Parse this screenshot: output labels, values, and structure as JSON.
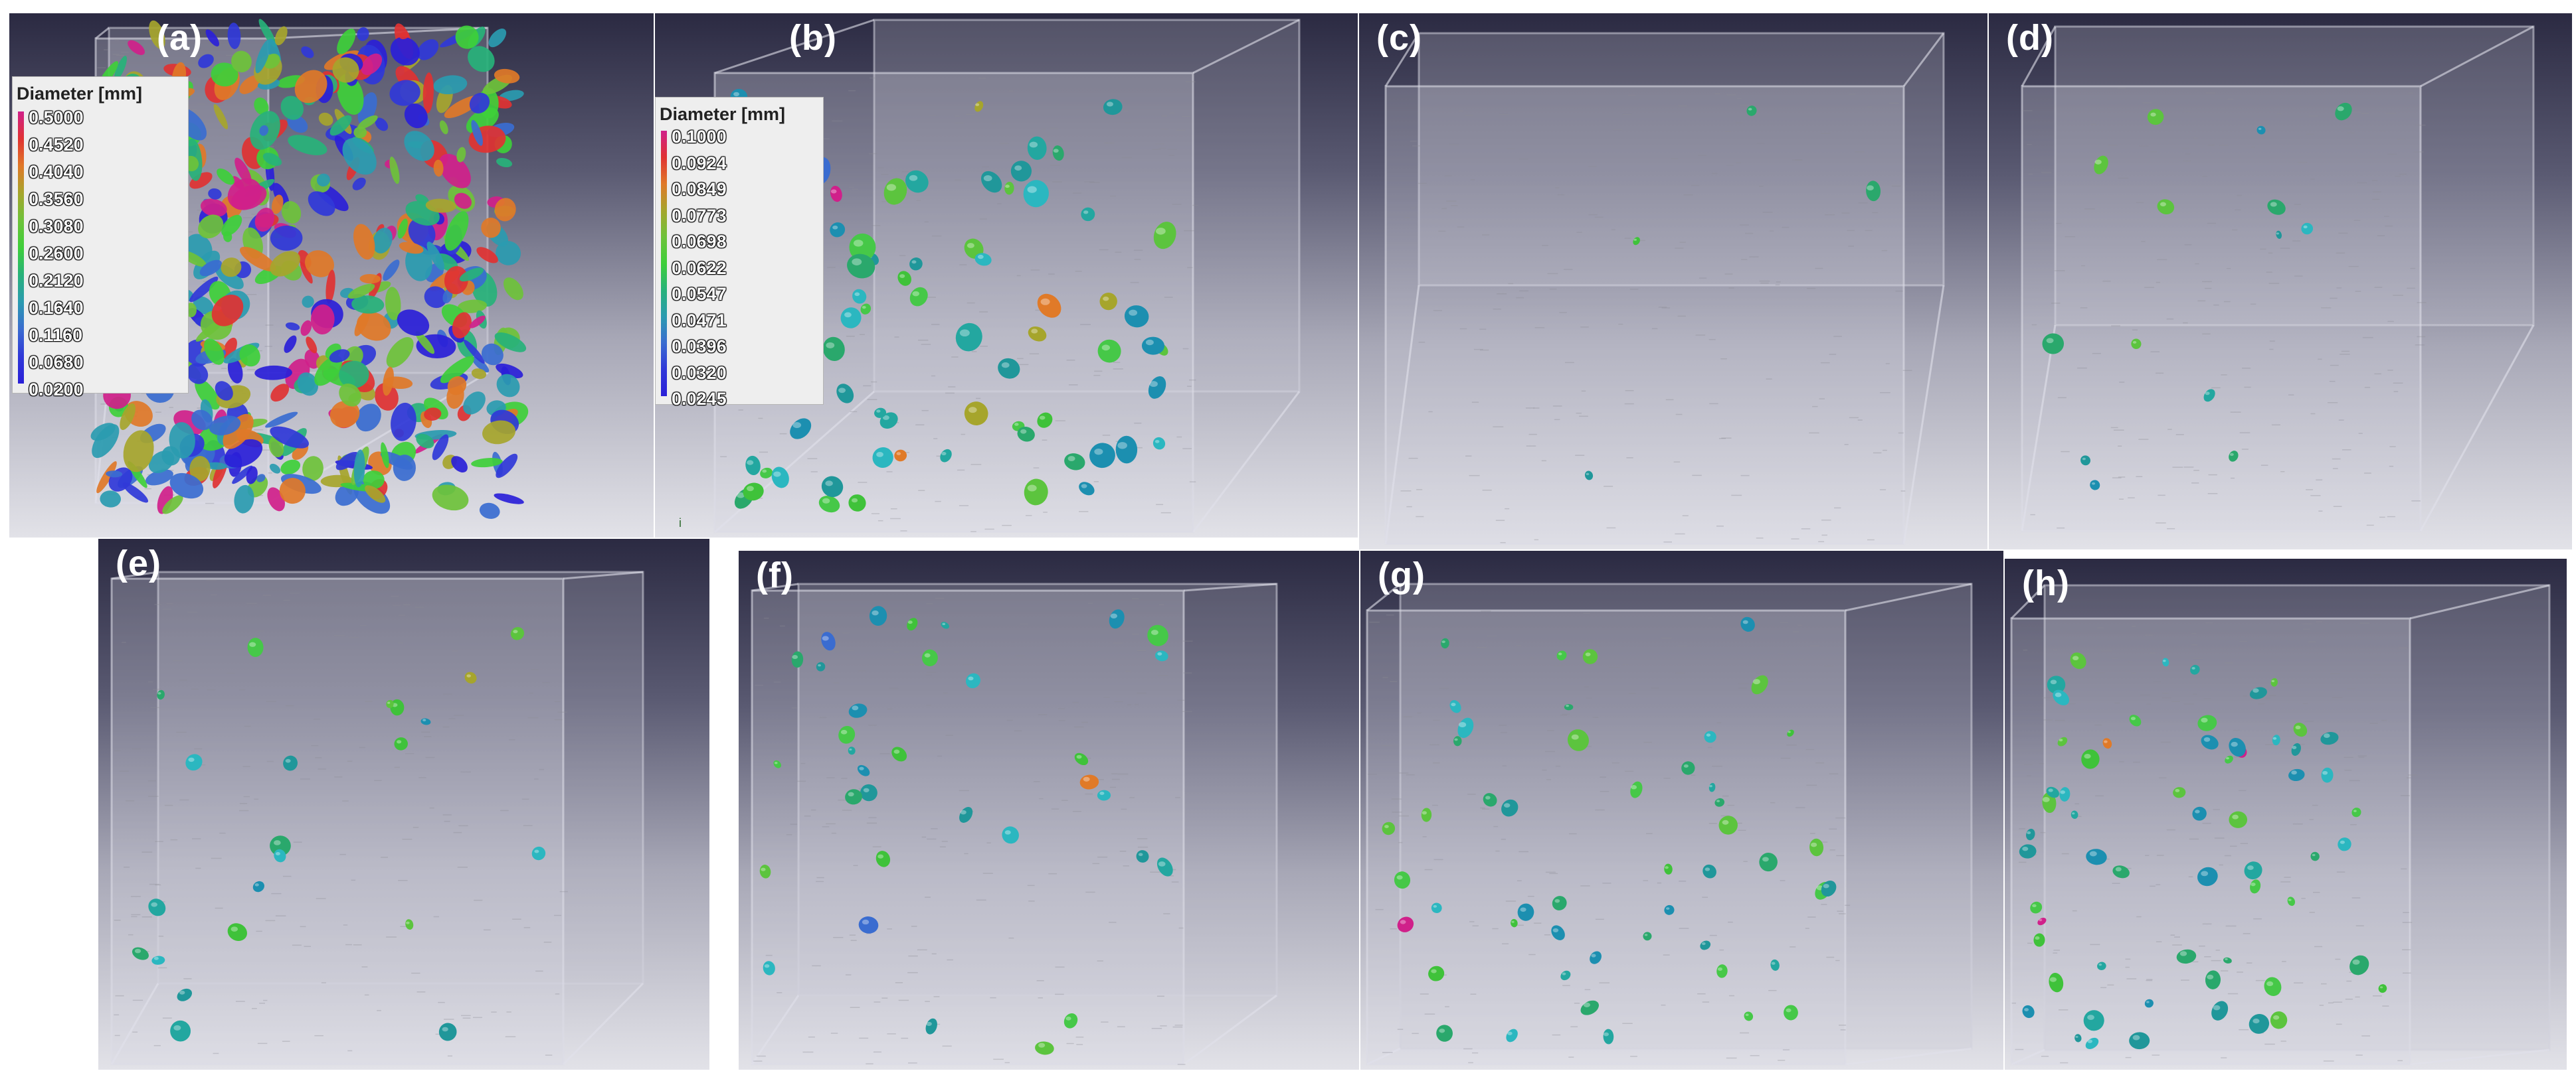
{
  "panels": [
    {
      "label": "(a)"
    },
    {
      "label": "(b)"
    },
    {
      "label": "(c)"
    },
    {
      "label": "(d)"
    },
    {
      "label": "(e)"
    },
    {
      "label": "(f)"
    },
    {
      "label": "(g)"
    },
    {
      "label": "(h)"
    }
  ],
  "legend_a": {
    "title": "Diameter [mm]",
    "ticks": [
      "0.5000",
      "0.4520",
      "0.4040",
      "0.3560",
      "0.3080",
      "0.2600",
      "0.2120",
      "0.1640",
      "0.1160",
      "0.0680",
      "0.0200"
    ]
  },
  "legend_b": {
    "title": "Diameter [mm]",
    "ticks": [
      "0.1000",
      "0.0924",
      "0.0849",
      "0.0773",
      "0.0698",
      "0.0622",
      "0.0547",
      "0.0471",
      "0.0396",
      "0.0320",
      "0.0245"
    ]
  },
  "colormap": [
    "#d0208a",
    "#e03232",
    "#e07828",
    "#a6a52c",
    "#6ec23a",
    "#3ecf3a",
    "#27b27a",
    "#2a9bb0",
    "#3a6cd0",
    "#3038d8",
    "#2a20d8"
  ],
  "axis_mark": "i"
}
